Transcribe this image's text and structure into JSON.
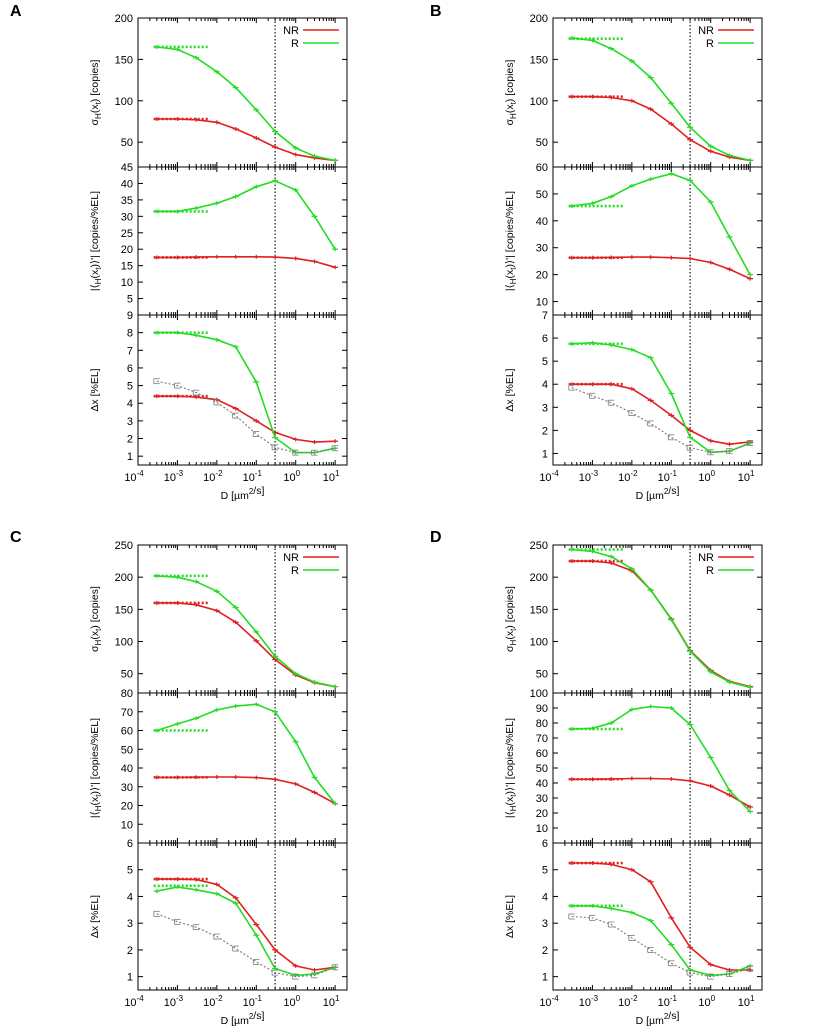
{
  "chart_data": [
    {
      "type": "line",
      "panel_label": "A",
      "legend": [
        {
          "label": "NR",
          "color": "#e02020"
        },
        {
          "label": "R",
          "color": "#22dd22"
        }
      ],
      "reference_color": "#777777",
      "xlabel": "D [µm²/s]",
      "xlim": [
        0.0001,
        20
      ],
      "vline_x": 0.3,
      "x": [
        0.0003,
        0.001,
        0.003,
        0.01,
        0.03,
        0.1,
        0.3,
        1,
        3,
        10
      ],
      "subplots": [
        {
          "ylabel": "σH(x_t) [copies]",
          "ylim": [
            20,
            200
          ],
          "yticks": [
            50,
            100,
            150,
            200
          ],
          "ytick_labels": [
            "50",
            "100",
            "150",
            "200"
          ],
          "series": [
            {
              "name": "NR",
              "values": [
                78,
                78,
                77,
                74,
                66,
                55,
                44,
                35,
                31,
                28
              ]
            },
            {
              "name": "R",
              "values": [
                165,
                162,
                152,
                135,
                116,
                89,
                63,
                43,
                33,
                28
              ]
            }
          ],
          "reference_levels": {
            "NR": 78,
            "R": 165
          }
        },
        {
          "ylabel": "|⟨H(x_t)⟩'| [copies/%EL]",
          "ylim": [
            0,
            45
          ],
          "yticks": [
            5,
            10,
            15,
            20,
            25,
            30,
            35,
            40,
            45
          ],
          "ytick_labels": [
            "5",
            "10",
            "15",
            "20",
            "25",
            "30",
            "35",
            "40",
            "45"
          ],
          "series": [
            {
              "name": "NR",
              "values": [
                17.5,
                17.5,
                17.6,
                17.7,
                17.7,
                17.7,
                17.6,
                17.2,
                16.3,
                14.5
              ]
            },
            {
              "name": "R",
              "values": [
                31.5,
                31.5,
                32.5,
                34,
                36,
                39,
                40.8,
                38,
                30,
                20
              ]
            }
          ],
          "reference_levels": {
            "NR": 17.5,
            "R": 31.5
          }
        },
        {
          "ylabel": "Δx [%EL]",
          "ylim": [
            0.5,
            9
          ],
          "yticks": [
            1,
            2,
            3,
            4,
            5,
            6,
            7,
            8,
            9
          ],
          "ytick_labels": [
            "1",
            "2",
            "3",
            "4",
            "5",
            "6",
            "7",
            "8",
            "9"
          ],
          "series": [
            {
              "name": "NR",
              "values": [
                4.4,
                4.4,
                4.35,
                4.2,
                3.7,
                3.0,
                2.35,
                1.95,
                1.8,
                1.85
              ]
            },
            {
              "name": "R",
              "values": [
                8.0,
                8.0,
                7.85,
                7.6,
                7.2,
                5.2,
                2.05,
                1.2,
                1.2,
                1.45
              ]
            },
            {
              "name": "reference",
              "values": [
                5.25,
                5.0,
                4.6,
                4.05,
                3.3,
                2.25,
                1.5,
                1.2,
                1.2,
                1.45
              ]
            }
          ],
          "reference_levels": {
            "NR": 4.4,
            "R": 8.0
          }
        }
      ],
      "xtick_labels": [
        "10^-4",
        "10^-3",
        "10^-2",
        "10^-1",
        "10^0",
        "10^1"
      ]
    },
    {
      "type": "line",
      "panel_label": "B",
      "legend": [
        {
          "label": "NR",
          "color": "#e02020"
        },
        {
          "label": "R",
          "color": "#22dd22"
        }
      ],
      "reference_color": "#777777",
      "xlabel": "D [µm²/s]",
      "xlim": [
        0.0001,
        20
      ],
      "vline_x": 0.3,
      "x": [
        0.0003,
        0.001,
        0.003,
        0.01,
        0.03,
        0.1,
        0.3,
        1,
        3,
        10
      ],
      "subplots": [
        {
          "ylabel": "σH(x_t) [copies]",
          "ylim": [
            20,
            200
          ],
          "yticks": [
            50,
            100,
            150,
            200
          ],
          "ytick_labels": [
            "50",
            "100",
            "150",
            "200"
          ],
          "series": [
            {
              "name": "NR",
              "values": [
                105,
                105,
                104,
                100,
                90,
                72,
                53,
                39,
                32,
                28
              ]
            },
            {
              "name": "R",
              "values": [
                176,
                173,
                163,
                148,
                128,
                97,
                68,
                45,
                34,
                28
              ]
            }
          ],
          "reference_levels": {
            "NR": 105,
            "R": 175
          }
        },
        {
          "ylabel": "|⟨H(x_t)⟩'| [copies/%EL]",
          "ylim": [
            5,
            60
          ],
          "yticks": [
            10,
            20,
            30,
            40,
            50,
            60
          ],
          "ytick_labels": [
            "10",
            "20",
            "30",
            "40",
            "50",
            "60"
          ],
          "series": [
            {
              "name": "NR",
              "values": [
                26.3,
                26.3,
                26.4,
                26.5,
                26.5,
                26.3,
                26.0,
                24.5,
                22,
                18.5
              ]
            },
            {
              "name": "R",
              "values": [
                45.5,
                46.5,
                49,
                53,
                55.5,
                57.5,
                55,
                47,
                34,
                20
              ]
            }
          ],
          "reference_levels": {
            "NR": 26.3,
            "R": 45.5
          }
        },
        {
          "ylabel": "Δx [%EL]",
          "ylim": [
            0.5,
            7
          ],
          "yticks": [
            1,
            2,
            3,
            4,
            5,
            6,
            7
          ],
          "ytick_labels": [
            "1",
            "2",
            "3",
            "4",
            "5",
            "6",
            "7"
          ],
          "series": [
            {
              "name": "NR",
              "values": [
                4.0,
                4.0,
                4.0,
                3.8,
                3.3,
                2.65,
                2.0,
                1.55,
                1.4,
                1.5
              ]
            },
            {
              "name": "R",
              "values": [
                5.75,
                5.8,
                5.7,
                5.5,
                5.15,
                3.6,
                1.7,
                1.05,
                1.1,
                1.45
              ]
            },
            {
              "name": "reference",
              "values": [
                3.85,
                3.5,
                3.2,
                2.75,
                2.3,
                1.7,
                1.25,
                1.05,
                1.1,
                1.45
              ]
            }
          ],
          "reference_levels": {
            "NR": 4.0,
            "R": 5.75
          }
        }
      ],
      "xtick_labels": [
        "10^-4",
        "10^-3",
        "10^-2",
        "10^-1",
        "10^0",
        "10^1"
      ]
    },
    {
      "type": "line",
      "panel_label": "C",
      "legend": [
        {
          "label": "NR",
          "color": "#e02020"
        },
        {
          "label": "R",
          "color": "#22dd22"
        }
      ],
      "reference_color": "#777777",
      "xlabel": "D [µm²/s]",
      "xlim": [
        0.0001,
        20
      ],
      "vline_x": 0.3,
      "x": [
        0.0003,
        0.001,
        0.003,
        0.01,
        0.03,
        0.1,
        0.3,
        1,
        3,
        10
      ],
      "subplots": [
        {
          "ylabel": "σH(x_t) [copies]",
          "ylim": [
            20,
            250
          ],
          "yticks": [
            50,
            100,
            150,
            200,
            250
          ],
          "ytick_labels": [
            "50",
            "100",
            "150",
            "200",
            "250"
          ],
          "series": [
            {
              "name": "NR",
              "values": [
                160,
                160,
                157,
                148,
                130,
                101,
                72,
                48,
                36,
                30
              ]
            },
            {
              "name": "R",
              "values": [
                202,
                200,
                193,
                178,
                153,
                115,
                77,
                50,
                37,
                30
              ]
            }
          ],
          "reference_levels": {
            "NR": 160,
            "R": 202
          }
        },
        {
          "ylabel": "|⟨H(x_t)⟩'| [copies/%EL]",
          "ylim": [
            0,
            80
          ],
          "yticks": [
            10,
            20,
            30,
            40,
            50,
            60,
            70,
            80
          ],
          "ytick_labels": [
            "10",
            "20",
            "30",
            "40",
            "50",
            "60",
            "70",
            "80"
          ],
          "series": [
            {
              "name": "NR",
              "values": [
                35,
                35,
                35.1,
                35.2,
                35.2,
                34.9,
                34.0,
                31.5,
                27,
                21
              ]
            },
            {
              "name": "R",
              "values": [
                60,
                63.5,
                66.5,
                71,
                73,
                74,
                70,
                54,
                35,
                21
              ]
            }
          ],
          "reference_levels": {
            "NR": 35,
            "R": 60
          }
        },
        {
          "ylabel": "Δx [%EL]",
          "ylim": [
            0.5,
            6
          ],
          "yticks": [
            1,
            2,
            3,
            4,
            5,
            6
          ],
          "ytick_labels": [
            "1",
            "2",
            "3",
            "4",
            "5",
            "6"
          ],
          "series": [
            {
              "name": "NR",
              "values": [
                4.65,
                4.65,
                4.63,
                4.45,
                3.95,
                2.95,
                2.0,
                1.4,
                1.25,
                1.35
              ]
            },
            {
              "name": "R",
              "values": [
                4.2,
                4.35,
                4.25,
                4.1,
                3.75,
                2.55,
                1.3,
                1.05,
                1.1,
                1.35
              ]
            },
            {
              "name": "reference",
              "values": [
                3.35,
                3.05,
                2.85,
                2.5,
                2.05,
                1.55,
                1.15,
                1.0,
                1.05,
                1.35
              ]
            }
          ],
          "reference_levels": {
            "NR": 4.65,
            "R": 4.4
          }
        }
      ],
      "xtick_labels": [
        "10^-4",
        "10^-3",
        "10^-2",
        "10^-1",
        "10^0",
        "10^1"
      ]
    },
    {
      "type": "line",
      "panel_label": "D",
      "legend": [
        {
          "label": "NR",
          "color": "#e02020"
        },
        {
          "label": "R",
          "color": "#22dd22"
        }
      ],
      "reference_color": "#777777",
      "xlabel": "D [µm²/s]",
      "xlim": [
        0.0001,
        20
      ],
      "vline_x": 0.3,
      "x": [
        0.0003,
        0.001,
        0.003,
        0.01,
        0.03,
        0.1,
        0.3,
        1,
        3,
        10
      ],
      "subplots": [
        {
          "ylabel": "σH(x_t) [copies]",
          "ylim": [
            20,
            250
          ],
          "yticks": [
            50,
            100,
            150,
            200,
            250
          ],
          "ytick_labels": [
            "50",
            "100",
            "150",
            "200",
            "250"
          ],
          "series": [
            {
              "name": "NR",
              "values": [
                225,
                225,
                222,
                210,
                180,
                135,
                86,
                55,
                38,
                30
              ]
            },
            {
              "name": "R",
              "values": [
                243,
                240,
                232,
                213,
                180,
                134,
                85,
                53,
                37,
                29
              ]
            }
          ],
          "reference_levels": {
            "NR": 225,
            "R": 243
          }
        },
        {
          "ylabel": "|⟨H(x_t)⟩'| [copies/%EL]",
          "ylim": [
            0,
            100
          ],
          "yticks": [
            10,
            20,
            30,
            40,
            50,
            60,
            70,
            80,
            90,
            100
          ],
          "ytick_labels": [
            "10",
            "20",
            "30",
            "40",
            "50",
            "60",
            "70",
            "80",
            "90",
            "100"
          ],
          "series": [
            {
              "name": "NR",
              "values": [
                42.5,
                42.5,
                42.7,
                43,
                43,
                42.7,
                41.5,
                38,
                32,
                24
              ]
            },
            {
              "name": "R",
              "values": [
                76,
                76.5,
                80,
                89,
                91,
                90,
                79,
                57,
                35,
                21
              ]
            }
          ],
          "reference_levels": {
            "NR": 42.5,
            "R": 76
          }
        },
        {
          "ylabel": "Δx [%EL]",
          "ylim": [
            0.5,
            6
          ],
          "yticks": [
            1,
            2,
            3,
            4,
            5,
            6
          ],
          "ytick_labels": [
            "1",
            "2",
            "3",
            "4",
            "5",
            "6"
          ],
          "series": [
            {
              "name": "NR",
              "values": [
                5.25,
                5.25,
                5.2,
                5.0,
                4.55,
                3.2,
                2.1,
                1.45,
                1.25,
                1.25
              ]
            },
            {
              "name": "R",
              "values": [
                3.65,
                3.65,
                3.55,
                3.4,
                3.1,
                2.2,
                1.25,
                1.05,
                1.1,
                1.4
              ]
            },
            {
              "name": "reference",
              "values": [
                3.25,
                3.2,
                2.95,
                2.45,
                2.0,
                1.5,
                1.15,
                1.0,
                1.1,
                1.3
              ]
            }
          ],
          "reference_levels": {
            "NR": 5.25,
            "R": 3.65
          }
        }
      ],
      "xtick_labels": [
        "10^-4",
        "10^-3",
        "10^-2",
        "10^-1",
        "10^0",
        "10^1"
      ]
    }
  ]
}
